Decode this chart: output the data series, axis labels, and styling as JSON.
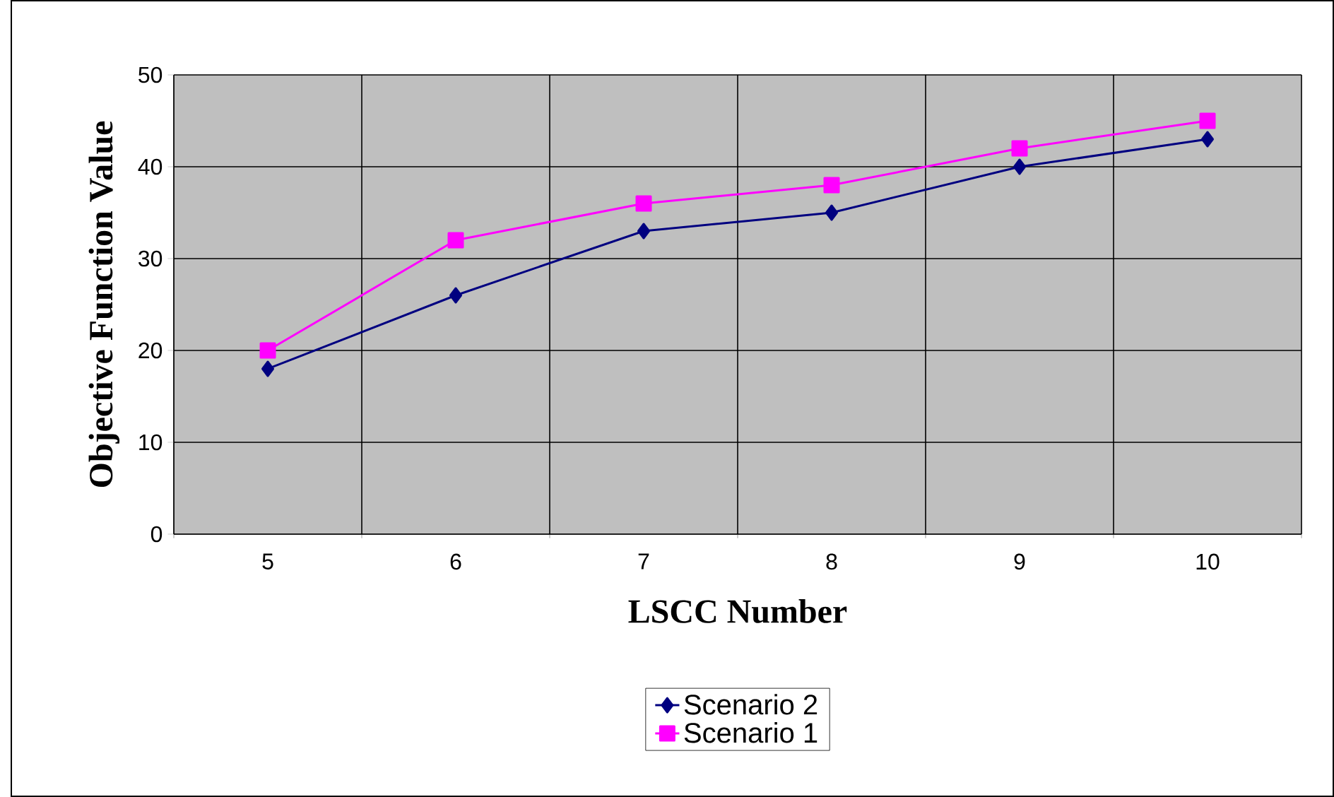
{
  "chart_data": {
    "type": "line",
    "xlabel": "LSCC Number",
    "ylabel": "Objective Function Value",
    "categories": [
      "5",
      "6",
      "7",
      "8",
      "9",
      "10"
    ],
    "series": [
      {
        "name": "Scenario 2",
        "color": "#000080",
        "marker": "diamond",
        "values": [
          18,
          26,
          33,
          35,
          40,
          43
        ]
      },
      {
        "name": "Scenario 1",
        "color": "#ff00ff",
        "marker": "square",
        "values": [
          20,
          32,
          36,
          38,
          42,
          45
        ]
      }
    ],
    "ylim": [
      0,
      50
    ],
    "yticks": [
      0,
      10,
      20,
      30,
      40,
      50
    ],
    "grid": true,
    "legend": "bottom",
    "line_style": "solid"
  }
}
